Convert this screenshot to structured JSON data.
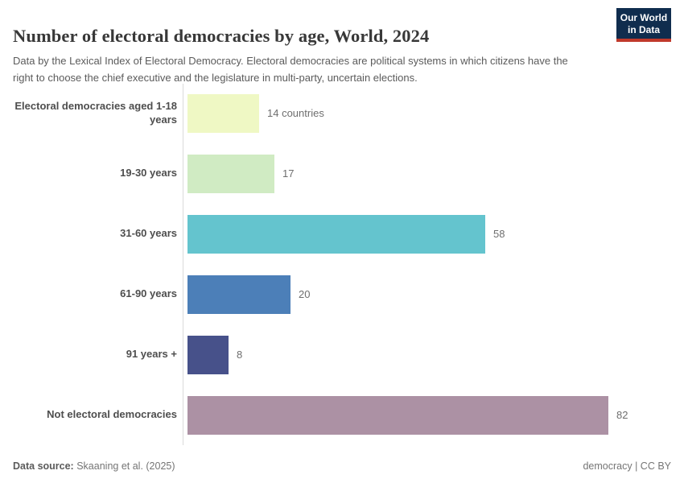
{
  "header": {
    "title": "Number of electoral democracies by age, World, 2024",
    "subtitle": "Data by the Lexical Index of Electoral Democracy. Electoral democracies are political systems in which citizens have the right to choose the chief executive and the legislature in multi-party, uncertain elections.",
    "logo": {
      "line1": "Our World",
      "line2": "in Data",
      "bg_color": "#102D4E",
      "accent_color": "#C0392B"
    }
  },
  "chart_data": {
    "type": "bar",
    "orientation": "horizontal",
    "title": "Number of electoral democracies by age, World, 2024",
    "categories": [
      "Electoral democracies aged 1-18 years",
      "19-30 years",
      "31-60 years",
      "61-90 years",
      "91 years +",
      "Not electoral democracies"
    ],
    "values": [
      14,
      17,
      58,
      20,
      8,
      82
    ],
    "value_labels": [
      "14 countries",
      "17",
      "58",
      "20",
      "8",
      "82"
    ],
    "bar_colors": [
      "#EFF8C4",
      "#D0EBC3",
      "#64C4CE",
      "#4C7FB8",
      "#47518A",
      "#AC91A4"
    ],
    "xlabel": "",
    "ylabel": "",
    "xlim": [
      0,
      82
    ],
    "grid": false,
    "legend": false,
    "axis_color": "#dadada"
  },
  "footer": {
    "datasource_label": "Data source:",
    "datasource_value": "Skaaning et al. (2025)",
    "license": "democracy | CC BY"
  }
}
